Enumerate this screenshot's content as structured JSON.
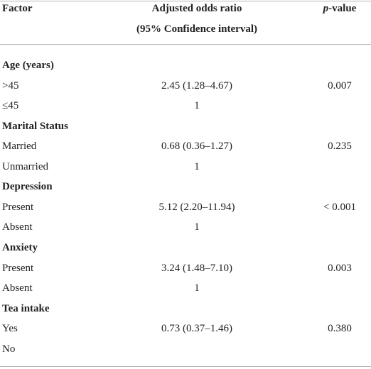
{
  "header": {
    "factor": "Factor",
    "or": [
      "Adjusted odds ratio",
      "(95% Confidence interval)"
    ],
    "p": [
      "p",
      "-value"
    ]
  },
  "groups": [
    {
      "title": "Age (years)",
      "rows": [
        {
          "label": ">45",
          "or": "2.45 (1.28–4.67)",
          "p": "0.007"
        },
        {
          "label": "≤45",
          "or": "1"
        }
      ]
    },
    {
      "title": "Marital Status",
      "rows": [
        {
          "label": "Married",
          "or": "0.68 (0.36–1.27)",
          "p": "0.235"
        },
        {
          "label": "Unmarried",
          "or": "1"
        }
      ]
    },
    {
      "title": "Depression",
      "rows": [
        {
          "label": "Present",
          "or": "5.12 (2.20–11.94)",
          "p": "< 0.001"
        },
        {
          "label": "Absent",
          "or": "1"
        }
      ]
    },
    {
      "title": "Anxiety",
      "rows": [
        {
          "label": "Present",
          "or": "3.24 (1.48–7.10)",
          "p": "0.003"
        },
        {
          "label": "Absent",
          "or": "1"
        }
      ]
    },
    {
      "title": "Tea intake",
      "rows": [
        {
          "label": "Yes",
          "or": "0.73 (0.37–1.46)",
          "p": "0.380"
        },
        {
          "label": "No"
        }
      ]
    }
  ]
}
